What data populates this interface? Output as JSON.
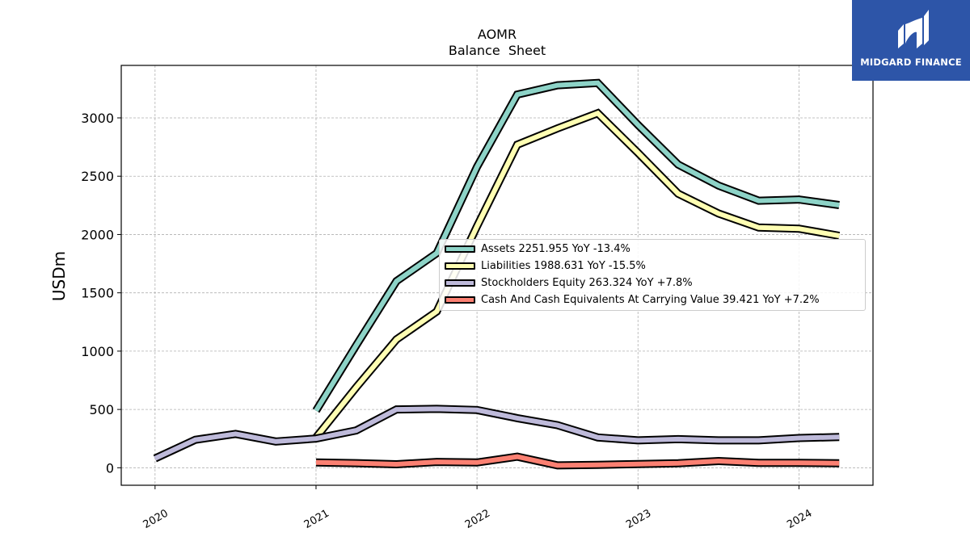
{
  "chart_data": {
    "type": "line",
    "title": "AOMR",
    "subtitle": "Balance  Sheet",
    "ylabel": "USDm",
    "xlabel": "",
    "ylim": [
      -150,
      3450
    ],
    "xlim": [
      2019.79,
      2024.46
    ],
    "yticks": [
      0,
      500,
      1000,
      1500,
      2000,
      2500,
      3000
    ],
    "xticks": [
      {
        "value": 2020,
        "label": "2020"
      },
      {
        "value": 2021,
        "label": "2021"
      },
      {
        "value": 2022,
        "label": "2022"
      },
      {
        "value": 2023,
        "label": "2023"
      },
      {
        "value": 2024,
        "label": "2024"
      }
    ],
    "grid": true,
    "legend_position": "center-right",
    "series": [
      {
        "name": "Assets",
        "legend": "Assets  2251.955 YoY -13.4%",
        "color": "#8dd3c7",
        "points": [
          [
            2021.0,
            490
          ],
          [
            2021.25,
            1050
          ],
          [
            2021.5,
            1600
          ],
          [
            2021.75,
            1840
          ],
          [
            2022.0,
            2580
          ],
          [
            2022.25,
            3200
          ],
          [
            2022.5,
            3280
          ],
          [
            2022.75,
            3300
          ],
          [
            2023.0,
            2940
          ],
          [
            2023.25,
            2600
          ],
          [
            2023.5,
            2420
          ],
          [
            2023.75,
            2290
          ],
          [
            2024.0,
            2300
          ],
          [
            2024.25,
            2252
          ]
        ]
      },
      {
        "name": "Liabilities",
        "legend": "Liabilities  1988.631 YoY -15.5%",
        "color": "#ffffb3",
        "points": [
          [
            2021.0,
            260
          ],
          [
            2021.25,
            690
          ],
          [
            2021.5,
            1100
          ],
          [
            2021.75,
            1340
          ],
          [
            2022.0,
            2070
          ],
          [
            2022.25,
            2770
          ],
          [
            2022.5,
            2910
          ],
          [
            2022.75,
            3040
          ],
          [
            2023.0,
            2700
          ],
          [
            2023.25,
            2350
          ],
          [
            2023.5,
            2180
          ],
          [
            2023.75,
            2060
          ],
          [
            2024.0,
            2050
          ],
          [
            2024.25,
            1989
          ]
        ]
      },
      {
        "name": "Stockholders Equity",
        "legend": "Stockholders Equity  263.324 YoY +7.8%",
        "color": "#bebada",
        "points": [
          [
            2020.0,
            80
          ],
          [
            2020.25,
            240
          ],
          [
            2020.5,
            290
          ],
          [
            2020.75,
            225
          ],
          [
            2021.0,
            250
          ],
          [
            2021.25,
            320
          ],
          [
            2021.5,
            500
          ],
          [
            2021.75,
            505
          ],
          [
            2022.0,
            495
          ],
          [
            2022.25,
            425
          ],
          [
            2022.5,
            365
          ],
          [
            2022.75,
            260
          ],
          [
            2023.0,
            235
          ],
          [
            2023.25,
            245
          ],
          [
            2023.5,
            235
          ],
          [
            2023.75,
            235
          ],
          [
            2024.0,
            255
          ],
          [
            2024.25,
            263
          ]
        ]
      },
      {
        "name": "Cash And Cash Equivalents At Carrying Value",
        "legend": "Cash And Cash Equivalents At Carrying Value  39.421 YoY +7.2%",
        "color": "#fb8072",
        "points": [
          [
            2021.0,
            45
          ],
          [
            2021.25,
            40
          ],
          [
            2021.5,
            30
          ],
          [
            2021.75,
            50
          ],
          [
            2022.0,
            45
          ],
          [
            2022.25,
            95
          ],
          [
            2022.5,
            20
          ],
          [
            2022.75,
            25
          ],
          [
            2023.0,
            32
          ],
          [
            2023.25,
            38
          ],
          [
            2023.5,
            58
          ],
          [
            2023.75,
            42
          ],
          [
            2024.0,
            42
          ],
          [
            2024.25,
            39
          ]
        ]
      }
    ]
  },
  "branding": {
    "logo_text": "MIDGARD FINANCE",
    "logo_color": "#2d55a8"
  }
}
